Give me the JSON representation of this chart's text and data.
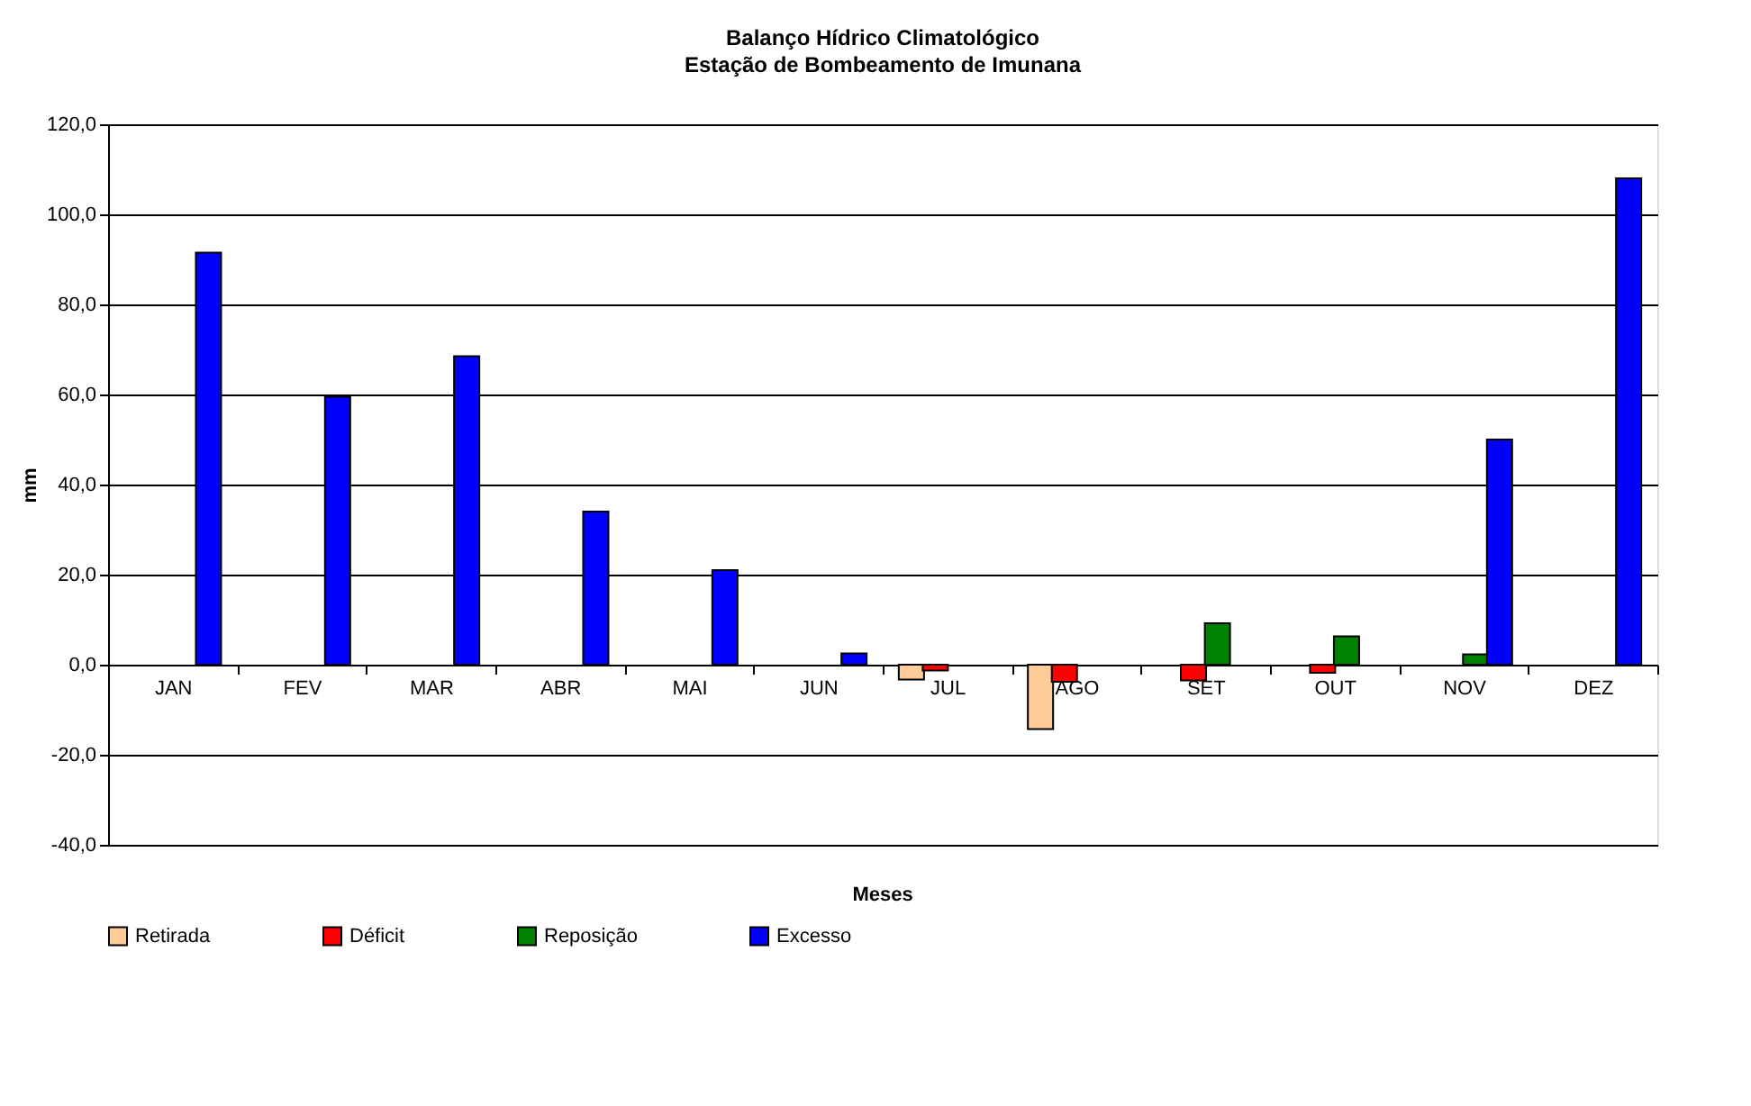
{
  "chart_data": {
    "type": "bar",
    "title": "Balanço Hídrico Climatológico",
    "subtitle": "Estação de Bombeamento de Imunana",
    "xlabel": "Meses",
    "ylabel": "mm",
    "categories": [
      "JAN",
      "FEV",
      "MAR",
      "ABR",
      "MAI",
      "JUN",
      "JUL",
      "AGO",
      "SET",
      "OUT",
      "NOV",
      "DEZ"
    ],
    "series": [
      {
        "name": "Retirada",
        "color": "#ffcc99",
        "values": [
          null,
          null,
          null,
          null,
          null,
          null,
          -3.3,
          -14.3,
          null,
          null,
          null,
          null
        ]
      },
      {
        "name": "Déficit",
        "color": "#ff0000",
        "values": [
          null,
          null,
          null,
          null,
          null,
          null,
          -1.3,
          -3.8,
          -3.5,
          -1.8,
          null,
          null
        ]
      },
      {
        "name": "Reposição",
        "color": "#008000",
        "values": [
          null,
          null,
          null,
          null,
          null,
          null,
          null,
          null,
          9.2,
          6.3,
          2.3,
          null
        ]
      },
      {
        "name": "Excesso",
        "color": "#0000ff",
        "values": [
          91.5,
          59.5,
          68.5,
          34.0,
          21.0,
          2.5,
          null,
          null,
          null,
          null,
          50.0,
          108.0
        ]
      }
    ],
    "ylim": [
      -40,
      120
    ],
    "yticks": [
      {
        "value": -40,
        "label": "-40,0"
      },
      {
        "value": -20,
        "label": "-20,0"
      },
      {
        "value": 0,
        "label": "0,0"
      },
      {
        "value": 20,
        "label": "20,0"
      },
      {
        "value": 40,
        "label": "40,0"
      },
      {
        "value": 60,
        "label": "60,0"
      },
      {
        "value": 80,
        "label": "80,0"
      },
      {
        "value": 100,
        "label": "100,0"
      },
      {
        "value": 120,
        "label": "120,0"
      }
    ],
    "grid": "y",
    "legend": "bottom"
  }
}
